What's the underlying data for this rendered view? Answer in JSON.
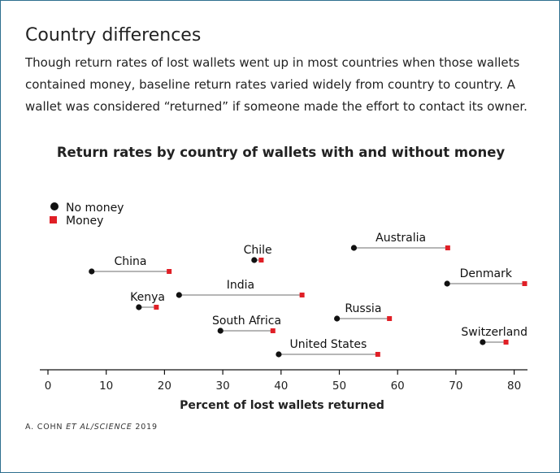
{
  "heading": "Country differences",
  "description": "Though return rates of lost wallets went up in most countries when those wallets contained money, baseline return rates varied widely from country to country. A wallet was considered “returned” if someone made the effort to contact its owner.",
  "source": {
    "author": "A. COHN ",
    "publication": "ET AL/SCIENCE",
    "year": " 2019"
  },
  "colors": {
    "no_money": "#111111",
    "money": "#e01f26",
    "connector": "#8a8a8a"
  },
  "chart_data": {
    "type": "dumbbell",
    "title": "Return rates by country of wallets with and without money",
    "xlabel": "Percent of lost wallets returned",
    "xlim": [
      0,
      82
    ],
    "xticks": [
      0,
      10,
      20,
      30,
      40,
      50,
      60,
      70,
      80
    ],
    "legend_position": "top-left",
    "series": [
      {
        "name": "No money",
        "marker": "circle"
      },
      {
        "name": "Money",
        "marker": "square"
      }
    ],
    "countries": [
      {
        "name": "China",
        "no_money": 7.5,
        "money": 20.8,
        "label_position": "above"
      },
      {
        "name": "Chile",
        "no_money": 35.4,
        "money": 36.6,
        "label_position": "above"
      },
      {
        "name": "Australia",
        "no_money": 52.5,
        "money": 68.6,
        "label_position": "above"
      },
      {
        "name": "Denmark",
        "no_money": 68.5,
        "money": 81.8,
        "label_position": "above"
      },
      {
        "name": "India",
        "no_money": 22.5,
        "money": 43.6,
        "label_position": "above"
      },
      {
        "name": "Kenya",
        "no_money": 15.6,
        "money": 18.6,
        "label_position": "above"
      },
      {
        "name": "Russia",
        "no_money": 49.6,
        "money": 58.6,
        "label_position": "above"
      },
      {
        "name": "South Africa",
        "no_money": 29.6,
        "money": 38.6,
        "label_position": "above"
      },
      {
        "name": "Switzerland",
        "no_money": 74.6,
        "money": 78.6,
        "label_position": "above"
      },
      {
        "name": "United States",
        "no_money": 39.6,
        "money": 56.6,
        "label_position": "above"
      }
    ]
  }
}
